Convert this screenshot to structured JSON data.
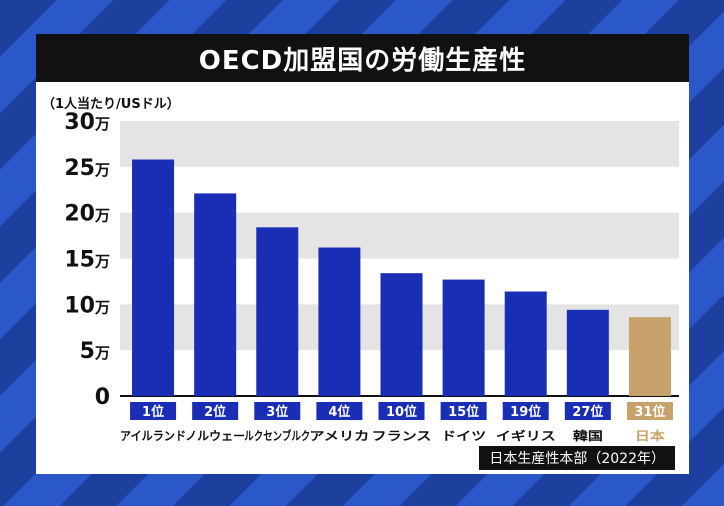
{
  "header": {
    "title": "OECD加盟国の労働生産性"
  },
  "footer": {
    "source": "日本生産性本部（2022年）"
  },
  "colors": {
    "bar": "#1a2db5",
    "highlight": "#c7a26b",
    "band": "#e4e4e4",
    "title_bg": "#111111"
  },
  "chart_data": {
    "type": "bar",
    "title": "OECD加盟国の労働生産性",
    "ylabel": "（1人当たり/USドル）",
    "xlabel": "",
    "ylim": [
      0,
      300000
    ],
    "yticks": [
      {
        "value": 0,
        "label": "0"
      },
      {
        "value": 50000,
        "label": "5万"
      },
      {
        "value": 100000,
        "label": "10万"
      },
      {
        "value": 150000,
        "label": "15万"
      },
      {
        "value": 200000,
        "label": "20万"
      },
      {
        "value": 250000,
        "label": "25万"
      },
      {
        "value": 300000,
        "label": "30万"
      }
    ],
    "grid": "alternating-bands",
    "categories": [
      "アイルランド",
      "ノルウェー",
      "ルクセンブルク",
      "アメリカ",
      "フランス",
      "ドイツ",
      "イギリス",
      "韓国",
      "日本"
    ],
    "ranks": [
      "1位",
      "2位",
      "3位",
      "4位",
      "10位",
      "15位",
      "19位",
      "27位",
      "31位"
    ],
    "values": [
      258000,
      221000,
      184000,
      162000,
      134000,
      127000,
      114000,
      94000,
      86000
    ],
    "highlight_index": 8
  }
}
